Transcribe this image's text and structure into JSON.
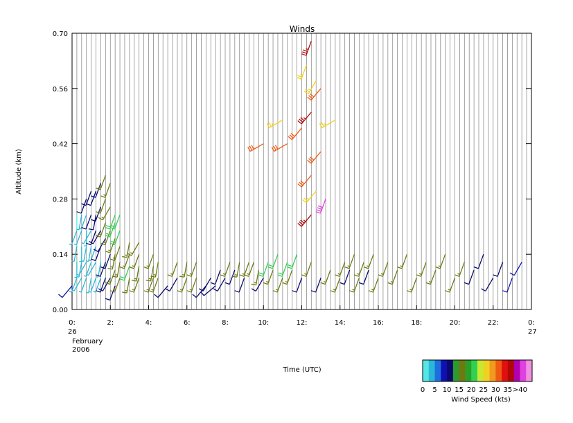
{
  "chart_data": {
    "type": "wind-barbs",
    "title": "Winds",
    "xlabel": "Time (UTC)",
    "ylabel": "Altitude (km)",
    "xlim": [
      0,
      24
    ],
    "ylim": [
      0.0,
      0.7
    ],
    "x_ticks": [
      {
        "value": 0,
        "label": "0:"
      },
      {
        "value": 2,
        "label": "2:"
      },
      {
        "value": 4,
        "label": "4:"
      },
      {
        "value": 6,
        "label": "6:"
      },
      {
        "value": 8,
        "label": "8:"
      },
      {
        "value": 10,
        "label": "10:"
      },
      {
        "value": 12,
        "label": "12:"
      },
      {
        "value": 14,
        "label": "14:"
      },
      {
        "value": 16,
        "label": "16:"
      },
      {
        "value": 18,
        "label": "18:"
      },
      {
        "value": 20,
        "label": "20:"
      },
      {
        "value": 22,
        "label": "22:"
      },
      {
        "value": 24,
        "label": "0:"
      }
    ],
    "y_ticks": [
      {
        "value": 0.0,
        "label": "0.00"
      },
      {
        "value": 0.14,
        "label": "0.14"
      },
      {
        "value": 0.28,
        "label": "0.28"
      },
      {
        "value": 0.42,
        "label": "0.42"
      },
      {
        "value": 0.56,
        "label": "0.56"
      },
      {
        "value": 0.7,
        "label": "0.70"
      }
    ],
    "date_start": [
      "26",
      "February",
      "2006"
    ],
    "date_end": [
      "27"
    ],
    "colorbar": {
      "title": "Wind Speed (kts)",
      "colors": [
        "#55e6e6",
        "#2ab8d8",
        "#1e6ee0",
        "#1010b0",
        "#0a0a6e",
        "#2e9a2e",
        "#6e7a10",
        "#2aa02a",
        "#30d050",
        "#c8e832",
        "#f0d020",
        "#f09a20",
        "#f05a10",
        "#e01010",
        "#b00808",
        "#b000b0",
        "#e040e0",
        "#f090e0"
      ],
      "labels": [
        "0",
        "5",
        "10",
        "15",
        "20",
        "25",
        "30",
        "35",
        ">40"
      ]
    },
    "note_grid": "vertical gridlines every 0.25 h; winds sampled every 0.25 h at several altitudes",
    "grid": true,
    "barbs": [
      {
        "t": 0.0,
        "alt": 0.06,
        "speed": 8,
        "dir": 220
      },
      {
        "t": 0.25,
        "alt": 0.08,
        "speed": 4,
        "dir": 200
      },
      {
        "t": 0.25,
        "alt": 0.12,
        "speed": 3,
        "dir": 180
      },
      {
        "t": 0.25,
        "alt": 0.16,
        "speed": 4,
        "dir": 190
      },
      {
        "t": 0.25,
        "alt": 0.2,
        "speed": 3,
        "dir": 200
      },
      {
        "t": 0.25,
        "alt": 0.24,
        "speed": 2,
        "dir": 180
      },
      {
        "t": 0.5,
        "alt": 0.08,
        "speed": 4,
        "dir": 210
      },
      {
        "t": 0.5,
        "alt": 0.12,
        "speed": 3,
        "dir": 190
      },
      {
        "t": 0.5,
        "alt": 0.16,
        "speed": 3,
        "dir": 180
      },
      {
        "t": 0.5,
        "alt": 0.2,
        "speed": 3,
        "dir": 200
      },
      {
        "t": 0.5,
        "alt": 0.24,
        "speed": 4,
        "dir": 190
      },
      {
        "t": 0.75,
        "alt": 0.08,
        "speed": 4,
        "dir": 200
      },
      {
        "t": 0.75,
        "alt": 0.12,
        "speed": 3,
        "dir": 210
      },
      {
        "t": 0.75,
        "alt": 0.16,
        "speed": 4,
        "dir": 190
      },
      {
        "t": 0.75,
        "alt": 0.2,
        "speed": 3,
        "dir": 180
      },
      {
        "t": 0.75,
        "alt": 0.24,
        "speed": 4,
        "dir": 200
      },
      {
        "t": 0.75,
        "alt": 0.28,
        "speed": 10,
        "dir": 200
      },
      {
        "t": 1.0,
        "alt": 0.08,
        "speed": 4,
        "dir": 190
      },
      {
        "t": 1.0,
        "alt": 0.12,
        "speed": 4,
        "dir": 200
      },
      {
        "t": 1.0,
        "alt": 0.16,
        "speed": 3,
        "dir": 190
      },
      {
        "t": 1.0,
        "alt": 0.2,
        "speed": 4,
        "dir": 210
      },
      {
        "t": 1.0,
        "alt": 0.24,
        "speed": 10,
        "dir": 200
      },
      {
        "t": 1.0,
        "alt": 0.3,
        "speed": 12,
        "dir": 200
      },
      {
        "t": 1.25,
        "alt": 0.08,
        "speed": 4,
        "dir": 200
      },
      {
        "t": 1.25,
        "alt": 0.12,
        "speed": 4,
        "dir": 210
      },
      {
        "t": 1.25,
        "alt": 0.16,
        "speed": 4,
        "dir": 200
      },
      {
        "t": 1.25,
        "alt": 0.2,
        "speed": 12,
        "dir": 200
      },
      {
        "t": 1.25,
        "alt": 0.24,
        "speed": 12,
        "dir": 190
      },
      {
        "t": 1.25,
        "alt": 0.3,
        "speed": 12,
        "dir": 200
      },
      {
        "t": 1.5,
        "alt": 0.08,
        "speed": 3,
        "dir": 200
      },
      {
        "t": 1.5,
        "alt": 0.12,
        "speed": 4,
        "dir": 190
      },
      {
        "t": 1.5,
        "alt": 0.16,
        "speed": 12,
        "dir": 200
      },
      {
        "t": 1.5,
        "alt": 0.2,
        "speed": 12,
        "dir": 210
      },
      {
        "t": 1.5,
        "alt": 0.26,
        "speed": 12,
        "dir": 200
      },
      {
        "t": 1.5,
        "alt": 0.32,
        "speed": 12,
        "dir": 200
      },
      {
        "t": 1.75,
        "alt": 0.08,
        "speed": 10,
        "dir": 200
      },
      {
        "t": 1.75,
        "alt": 0.12,
        "speed": 12,
        "dir": 200
      },
      {
        "t": 1.75,
        "alt": 0.18,
        "speed": 12,
        "dir": 210
      },
      {
        "t": 1.75,
        "alt": 0.22,
        "speed": 17,
        "dir": 200
      },
      {
        "t": 1.75,
        "alt": 0.28,
        "speed": 17,
        "dir": 200
      },
      {
        "t": 1.75,
        "alt": 0.34,
        "speed": 17,
        "dir": 200
      },
      {
        "t": 2.0,
        "alt": 0.08,
        "speed": 12,
        "dir": 210
      },
      {
        "t": 2.0,
        "alt": 0.14,
        "speed": 12,
        "dir": 200
      },
      {
        "t": 2.0,
        "alt": 0.2,
        "speed": 17,
        "dir": 200
      },
      {
        "t": 2.0,
        "alt": 0.26,
        "speed": 17,
        "dir": 210
      },
      {
        "t": 2.0,
        "alt": 0.32,
        "speed": 17,
        "dir": 200
      },
      {
        "t": 2.25,
        "alt": 0.06,
        "speed": 12,
        "dir": 200
      },
      {
        "t": 2.25,
        "alt": 0.1,
        "speed": 17,
        "dir": 200
      },
      {
        "t": 2.25,
        "alt": 0.14,
        "speed": 17,
        "dir": 190
      },
      {
        "t": 2.25,
        "alt": 0.18,
        "speed": 17,
        "dir": 200
      },
      {
        "t": 2.25,
        "alt": 0.22,
        "speed": 20,
        "dir": 200
      },
      {
        "t": 2.25,
        "alt": 0.24,
        "speed": 22,
        "dir": 200
      },
      {
        "t": 2.5,
        "alt": 0.08,
        "speed": 17,
        "dir": 200
      },
      {
        "t": 2.5,
        "alt": 0.12,
        "speed": 17,
        "dir": 190
      },
      {
        "t": 2.5,
        "alt": 0.16,
        "speed": 17,
        "dir": 200
      },
      {
        "t": 2.5,
        "alt": 0.2,
        "speed": 20,
        "dir": 200
      },
      {
        "t": 2.5,
        "alt": 0.24,
        "speed": 22,
        "dir": 200
      },
      {
        "t": 3.0,
        "alt": 0.08,
        "speed": 17,
        "dir": 190
      },
      {
        "t": 3.0,
        "alt": 0.11,
        "speed": 22,
        "dir": 200
      },
      {
        "t": 3.0,
        "alt": 0.14,
        "speed": 17,
        "dir": 200
      },
      {
        "t": 3.0,
        "alt": 0.17,
        "speed": 17,
        "dir": 190
      },
      {
        "t": 3.5,
        "alt": 0.08,
        "speed": 17,
        "dir": 200
      },
      {
        "t": 3.5,
        "alt": 0.11,
        "speed": 17,
        "dir": 190
      },
      {
        "t": 3.5,
        "alt": 0.14,
        "speed": 17,
        "dir": 200
      },
      {
        "t": 3.5,
        "alt": 0.17,
        "speed": 17,
        "dir": 210
      },
      {
        "t": 4.25,
        "alt": 0.08,
        "speed": 17,
        "dir": 200
      },
      {
        "t": 4.25,
        "alt": 0.11,
        "speed": 17,
        "dir": 190
      },
      {
        "t": 4.25,
        "alt": 0.14,
        "speed": 17,
        "dir": 200
      },
      {
        "t": 4.5,
        "alt": 0.08,
        "speed": 17,
        "dir": 200
      },
      {
        "t": 4.5,
        "alt": 0.12,
        "speed": 17,
        "dir": 190
      },
      {
        "t": 5.0,
        "alt": 0.06,
        "speed": 10,
        "dir": 220
      },
      {
        "t": 5.5,
        "alt": 0.08,
        "speed": 12,
        "dir": 210
      },
      {
        "t": 5.5,
        "alt": 0.12,
        "speed": 17,
        "dir": 200
      },
      {
        "t": 6.0,
        "alt": 0.08,
        "speed": 17,
        "dir": 200
      },
      {
        "t": 6.0,
        "alt": 0.12,
        "speed": 17,
        "dir": 190
      },
      {
        "t": 6.5,
        "alt": 0.08,
        "speed": 17,
        "dir": 200
      },
      {
        "t": 6.5,
        "alt": 0.12,
        "speed": 17,
        "dir": 200
      },
      {
        "t": 7.0,
        "alt": 0.06,
        "speed": 12,
        "dir": 220
      },
      {
        "t": 7.25,
        "alt": 0.08,
        "speed": 12,
        "dir": 210
      },
      {
        "t": 7.5,
        "alt": 0.06,
        "speed": 12,
        "dir": 230
      },
      {
        "t": 7.75,
        "alt": 0.1,
        "speed": 12,
        "dir": 200
      },
      {
        "t": 8.0,
        "alt": 0.08,
        "speed": 12,
        "dir": 210
      },
      {
        "t": 8.25,
        "alt": 0.12,
        "speed": 17,
        "dir": 200
      },
      {
        "t": 8.5,
        "alt": 0.1,
        "speed": 12,
        "dir": 200
      },
      {
        "t": 8.75,
        "alt": 0.12,
        "speed": 17,
        "dir": 190
      },
      {
        "t": 9.0,
        "alt": 0.08,
        "speed": 12,
        "dir": 200
      },
      {
        "t": 9.25,
        "alt": 0.12,
        "speed": 17,
        "dir": 200
      },
      {
        "t": 9.5,
        "alt": 0.12,
        "speed": 17,
        "dir": 200
      },
      {
        "t": 9.75,
        "alt": 0.1,
        "speed": 17,
        "dir": 190
      },
      {
        "t": 10.0,
        "alt": 0.08,
        "speed": 12,
        "dir": 210
      },
      {
        "t": 10.25,
        "alt": 0.12,
        "speed": 20,
        "dir": 200
      },
      {
        "t": 10.5,
        "alt": 0.1,
        "speed": 17,
        "dir": 200
      },
      {
        "t": 10.75,
        "alt": 0.14,
        "speed": 22,
        "dir": 200
      },
      {
        "t": 11.0,
        "alt": 0.08,
        "speed": 17,
        "dir": 200
      },
      {
        "t": 11.25,
        "alt": 0.12,
        "speed": 22,
        "dir": 200
      },
      {
        "t": 11.5,
        "alt": 0.1,
        "speed": 17,
        "dir": 200
      },
      {
        "t": 11.75,
        "alt": 0.14,
        "speed": 20,
        "dir": 200
      },
      {
        "t": 12.0,
        "alt": 0.08,
        "speed": 12,
        "dir": 200
      },
      {
        "t": 12.5,
        "alt": 0.12,
        "speed": 17,
        "dir": 200
      },
      {
        "t": 13.0,
        "alt": 0.08,
        "speed": 12,
        "dir": 200
      },
      {
        "t": 13.5,
        "alt": 0.1,
        "speed": 17,
        "dir": 200
      },
      {
        "t": 14.0,
        "alt": 0.08,
        "speed": 17,
        "dir": 200
      },
      {
        "t": 14.25,
        "alt": 0.12,
        "speed": 17,
        "dir": 200
      },
      {
        "t": 14.5,
        "alt": 0.1,
        "speed": 12,
        "dir": 200
      },
      {
        "t": 14.75,
        "alt": 0.14,
        "speed": 17,
        "dir": 200
      },
      {
        "t": 15.0,
        "alt": 0.08,
        "speed": 17,
        "dir": 200
      },
      {
        "t": 15.25,
        "alt": 0.12,
        "speed": 17,
        "dir": 200
      },
      {
        "t": 15.5,
        "alt": 0.1,
        "speed": 12,
        "dir": 200
      },
      {
        "t": 15.75,
        "alt": 0.14,
        "speed": 17,
        "dir": 200
      },
      {
        "t": 16.0,
        "alt": 0.08,
        "speed": 17,
        "dir": 200
      },
      {
        "t": 16.5,
        "alt": 0.12,
        "speed": 17,
        "dir": 200
      },
      {
        "t": 17.0,
        "alt": 0.1,
        "speed": 17,
        "dir": 200
      },
      {
        "t": 17.5,
        "alt": 0.14,
        "speed": 17,
        "dir": 200
      },
      {
        "t": 18.0,
        "alt": 0.08,
        "speed": 17,
        "dir": 200
      },
      {
        "t": 18.5,
        "alt": 0.12,
        "speed": 17,
        "dir": 200
      },
      {
        "t": 19.0,
        "alt": 0.1,
        "speed": 17,
        "dir": 200
      },
      {
        "t": 19.5,
        "alt": 0.14,
        "speed": 17,
        "dir": 200
      },
      {
        "t": 20.0,
        "alt": 0.08,
        "speed": 17,
        "dir": 200
      },
      {
        "t": 20.5,
        "alt": 0.12,
        "speed": 17,
        "dir": 200
      },
      {
        "t": 21.0,
        "alt": 0.1,
        "speed": 12,
        "dir": 200
      },
      {
        "t": 21.5,
        "alt": 0.14,
        "speed": 12,
        "dir": 200
      },
      {
        "t": 22.0,
        "alt": 0.08,
        "speed": 12,
        "dir": 210
      },
      {
        "t": 22.5,
        "alt": 0.12,
        "speed": 12,
        "dir": 200
      },
      {
        "t": 23.0,
        "alt": 0.08,
        "speed": 8,
        "dir": 200
      },
      {
        "t": 23.5,
        "alt": 0.12,
        "speed": 8,
        "dir": 210
      },
      {
        "t": 10.0,
        "alt": 0.42,
        "speed": 30,
        "dir": 240
      },
      {
        "t": 11.0,
        "alt": 0.48,
        "speed": 25,
        "dir": 240
      },
      {
        "t": 11.25,
        "alt": 0.42,
        "speed": 30,
        "dir": 240
      },
      {
        "t": 12.0,
        "alt": 0.46,
        "speed": 30,
        "dir": 220
      },
      {
        "t": 12.25,
        "alt": 0.62,
        "speed": 25,
        "dir": 200
      },
      {
        "t": 12.5,
        "alt": 0.68,
        "speed": 35,
        "dir": 200
      },
      {
        "t": 12.75,
        "alt": 0.58,
        "speed": 25,
        "dir": 210
      },
      {
        "t": 13.0,
        "alt": 0.56,
        "speed": 30,
        "dir": 220
      },
      {
        "t": 12.5,
        "alt": 0.5,
        "speed": 35,
        "dir": 220
      },
      {
        "t": 13.0,
        "alt": 0.4,
        "speed": 30,
        "dir": 220
      },
      {
        "t": 12.5,
        "alt": 0.34,
        "speed": 30,
        "dir": 220
      },
      {
        "t": 12.75,
        "alt": 0.3,
        "speed": 25,
        "dir": 220
      },
      {
        "t": 13.25,
        "alt": 0.28,
        "speed": 40,
        "dir": 200
      },
      {
        "t": 12.5,
        "alt": 0.24,
        "speed": 35,
        "dir": 220
      },
      {
        "t": 13.75,
        "alt": 0.48,
        "speed": 25,
        "dir": 240
      }
    ]
  }
}
